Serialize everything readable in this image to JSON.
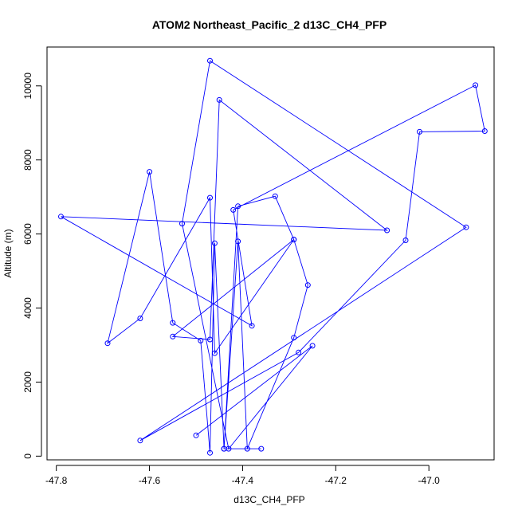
{
  "chart_data": {
    "type": "line",
    "title": "ATOM2 Northeast_Pacific_2 d13C_CH4_PFP",
    "xlabel": "d13C_CH4_PFP",
    "ylabel": "Altitude (m)",
    "xlim": [
      -47.82,
      -46.86
    ],
    "ylim": [
      -100,
      11050
    ],
    "x_ticks": [
      -47.8,
      -47.6,
      -47.4,
      -47.2,
      -47.0
    ],
    "x_tick_labels": [
      "-47.8",
      "-47.6",
      "-47.4",
      "-47.2",
      "-47.0"
    ],
    "y_ticks": [
      0,
      2000,
      4000,
      6000,
      8000,
      10000
    ],
    "y_tick_labels": [
      "0",
      "2000",
      "4000",
      "6000",
      "8000",
      "10000"
    ],
    "grid": false,
    "series": [
      {
        "color": "#0000ff",
        "marker": "open-circle",
        "points": [
          [
            -47.36,
            200
          ],
          [
            -47.44,
            200
          ],
          [
            -47.41,
            6750
          ],
          [
            -47.33,
            7020
          ],
          [
            -47.29,
            5850
          ],
          [
            -47.46,
            2780
          ],
          [
            -47.47,
            6980
          ],
          [
            -47.62,
            3720
          ],
          [
            -47.69,
            3050
          ],
          [
            -47.6,
            7680
          ],
          [
            -47.55,
            3600
          ],
          [
            -47.49,
            3120
          ],
          [
            -47.47,
            90
          ],
          [
            -47.46,
            5750
          ],
          [
            -47.44,
            200
          ],
          [
            -47.41,
            5800
          ],
          [
            -47.39,
            200
          ],
          [
            -47.29,
            3200
          ],
          [
            -47.26,
            4620
          ],
          [
            -47.29,
            5850
          ],
          [
            -47.55,
            3230
          ],
          [
            -47.47,
            3150
          ],
          [
            -47.45,
            9620
          ],
          [
            -47.09,
            6100
          ],
          [
            -47.79,
            6470
          ],
          [
            -47.38,
            3520
          ],
          [
            -47.42,
            6650
          ],
          [
            -46.9,
            10020
          ],
          [
            -46.88,
            8780
          ],
          [
            -47.02,
            8760
          ],
          [
            -47.05,
            5830
          ],
          [
            -47.28,
            2800
          ],
          [
            -47.62,
            420
          ],
          [
            -46.92,
            6180
          ],
          [
            -47.47,
            10680
          ],
          [
            -47.53,
            6280
          ],
          [
            -47.43,
            200
          ],
          [
            -47.25,
            2980
          ],
          [
            -47.5,
            560
          ]
        ]
      }
    ]
  }
}
